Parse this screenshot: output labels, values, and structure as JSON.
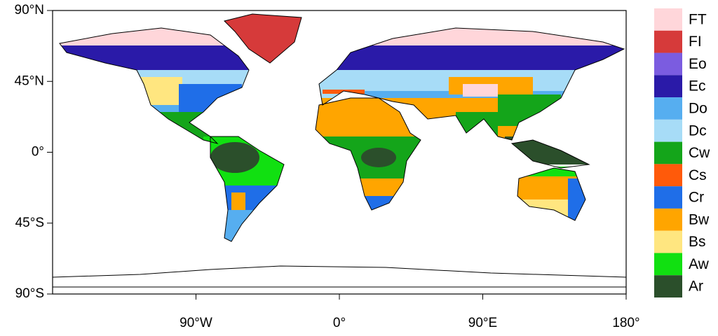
{
  "map": {
    "xlim": [
      -180,
      180
    ],
    "ylim": [
      -90,
      90
    ],
    "xticks": [
      {
        "value": -90,
        "label": "90°W"
      },
      {
        "value": 0,
        "label": "0°"
      },
      {
        "value": 90,
        "label": "90°E"
      },
      {
        "value": 180,
        "label": "180°"
      }
    ],
    "yticks": [
      {
        "value": 90,
        "label": "90°N"
      },
      {
        "value": 45,
        "label": "45°N"
      },
      {
        "value": 0,
        "label": "0°"
      },
      {
        "value": -45,
        "label": "45°S"
      },
      {
        "value": -90,
        "label": "90°S"
      }
    ],
    "legend": [
      {
        "name": "FT",
        "color": "#ffd6da"
      },
      {
        "name": "FI",
        "color": "#d63a3a"
      },
      {
        "name": "Eo",
        "color": "#7b5ce0"
      },
      {
        "name": "Ec",
        "color": "#2a1aa8"
      },
      {
        "name": "Do",
        "color": "#56aef0"
      },
      {
        "name": "Dc",
        "color": "#a7dcf7"
      },
      {
        "name": "Cw",
        "color": "#14a51a"
      },
      {
        "name": "Cs",
        "color": "#ff5a0a"
      },
      {
        "name": "Cr",
        "color": "#1f6ee8"
      },
      {
        "name": "Bw",
        "color": "#ffa500"
      },
      {
        "name": "Bs",
        "color": "#ffe680"
      },
      {
        "name": "Aw",
        "color": "#11e011"
      },
      {
        "name": "Ar",
        "color": "#2b4f2b"
      }
    ]
  }
}
